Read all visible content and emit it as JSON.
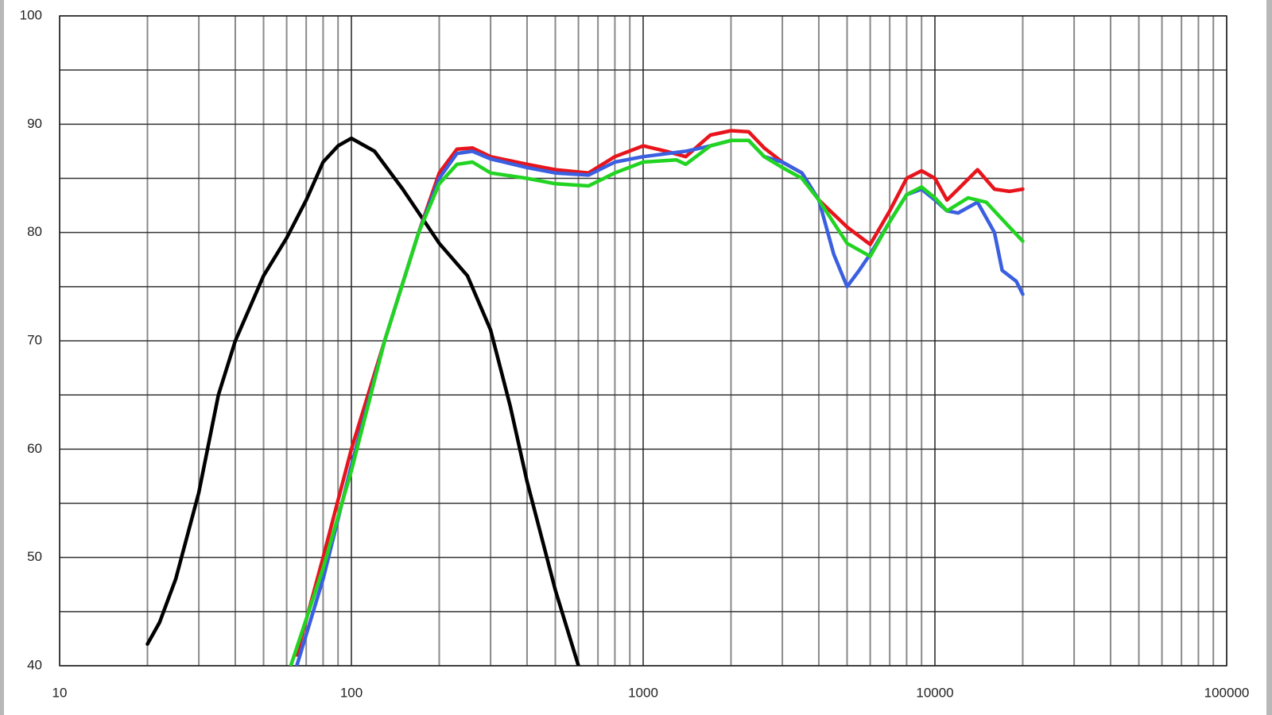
{
  "chart_data": {
    "type": "line",
    "xscale": "log",
    "xlim": [
      10,
      100000
    ],
    "xticks": [
      10,
      100,
      1000,
      10000,
      100000
    ],
    "log_minor_grid": true,
    "ylim": [
      40,
      100
    ],
    "yticks": [
      40,
      50,
      60,
      70,
      80,
      90,
      100
    ],
    "yminor": [
      45,
      55,
      65,
      75,
      85,
      95
    ],
    "grid": true,
    "series": [
      {
        "color": "#000000",
        "x": [
          20,
          22,
          25,
          30,
          35,
          40,
          50,
          60,
          70,
          80,
          90,
          100,
          120,
          150,
          200,
          250,
          300,
          350,
          400,
          500,
          600
        ],
        "values": [
          42,
          44,
          48,
          56,
          65,
          70,
          76,
          79.5,
          83,
          86.5,
          88,
          88.7,
          87.5,
          84,
          79,
          76,
          71,
          64,
          57,
          47,
          40
        ]
      },
      {
        "color": "#e8141c",
        "x": [
          65,
          80,
          100,
          130,
          170,
          200,
          230,
          260,
          300,
          400,
          500,
          650,
          800,
          1000,
          1200,
          1400,
          1700,
          2000,
          2300,
          2600,
          3000,
          3500,
          4000,
          5000,
          6000,
          7000,
          8000,
          9000,
          10000,
          11000,
          12000,
          14000,
          16000,
          18000,
          20000
        ],
        "values": [
          41,
          50,
          60,
          70,
          80,
          85.5,
          87.7,
          87.8,
          87,
          86.3,
          85.8,
          85.5,
          87,
          88,
          87.5,
          87,
          89,
          89.4,
          89.3,
          87.8,
          86.5,
          85.5,
          83,
          80.5,
          78.9,
          82,
          85,
          85.7,
          85,
          83,
          84,
          85.8,
          84,
          83.8,
          84
        ]
      },
      {
        "color": "#3a5fe0",
        "x": [
          65,
          80,
          100,
          130,
          170,
          200,
          230,
          260,
          300,
          400,
          500,
          650,
          800,
          1000,
          1400,
          1700,
          2000,
          2300,
          2600,
          3000,
          3500,
          4000,
          4500,
          5000,
          5500,
          6000,
          7000,
          8000,
          9000,
          10000,
          11000,
          12000,
          14000,
          16000,
          17000,
          19000,
          20000
        ],
        "values": [
          40,
          48,
          58.5,
          70,
          80,
          85,
          87.3,
          87.5,
          86.8,
          86,
          85.5,
          85.3,
          86.5,
          87,
          87.5,
          88,
          88.5,
          88.5,
          87,
          86.5,
          85.5,
          83,
          78,
          75,
          76.5,
          78,
          81,
          83.5,
          84,
          83,
          82,
          81.8,
          82.8,
          80,
          76.5,
          75.5,
          74.3
        ]
      },
      {
        "color": "#22d422",
        "x": [
          62,
          80,
          100,
          130,
          170,
          200,
          230,
          260,
          300,
          400,
          500,
          650,
          800,
          1000,
          1300,
          1400,
          1700,
          2000,
          2300,
          2600,
          3000,
          3500,
          4000,
          5000,
          6000,
          7000,
          8000,
          9000,
          10000,
          11000,
          13000,
          15000,
          18000,
          20000
        ],
        "values": [
          40,
          49,
          58,
          70,
          80,
          84.5,
          86.3,
          86.5,
          85.5,
          85,
          84.5,
          84.3,
          85.5,
          86.5,
          86.7,
          86.3,
          88,
          88.5,
          88.5,
          87,
          86,
          85,
          83,
          79,
          77.8,
          81,
          83.5,
          84.2,
          83.2,
          82,
          83.2,
          82.8,
          80.5,
          79.2
        ]
      }
    ]
  }
}
